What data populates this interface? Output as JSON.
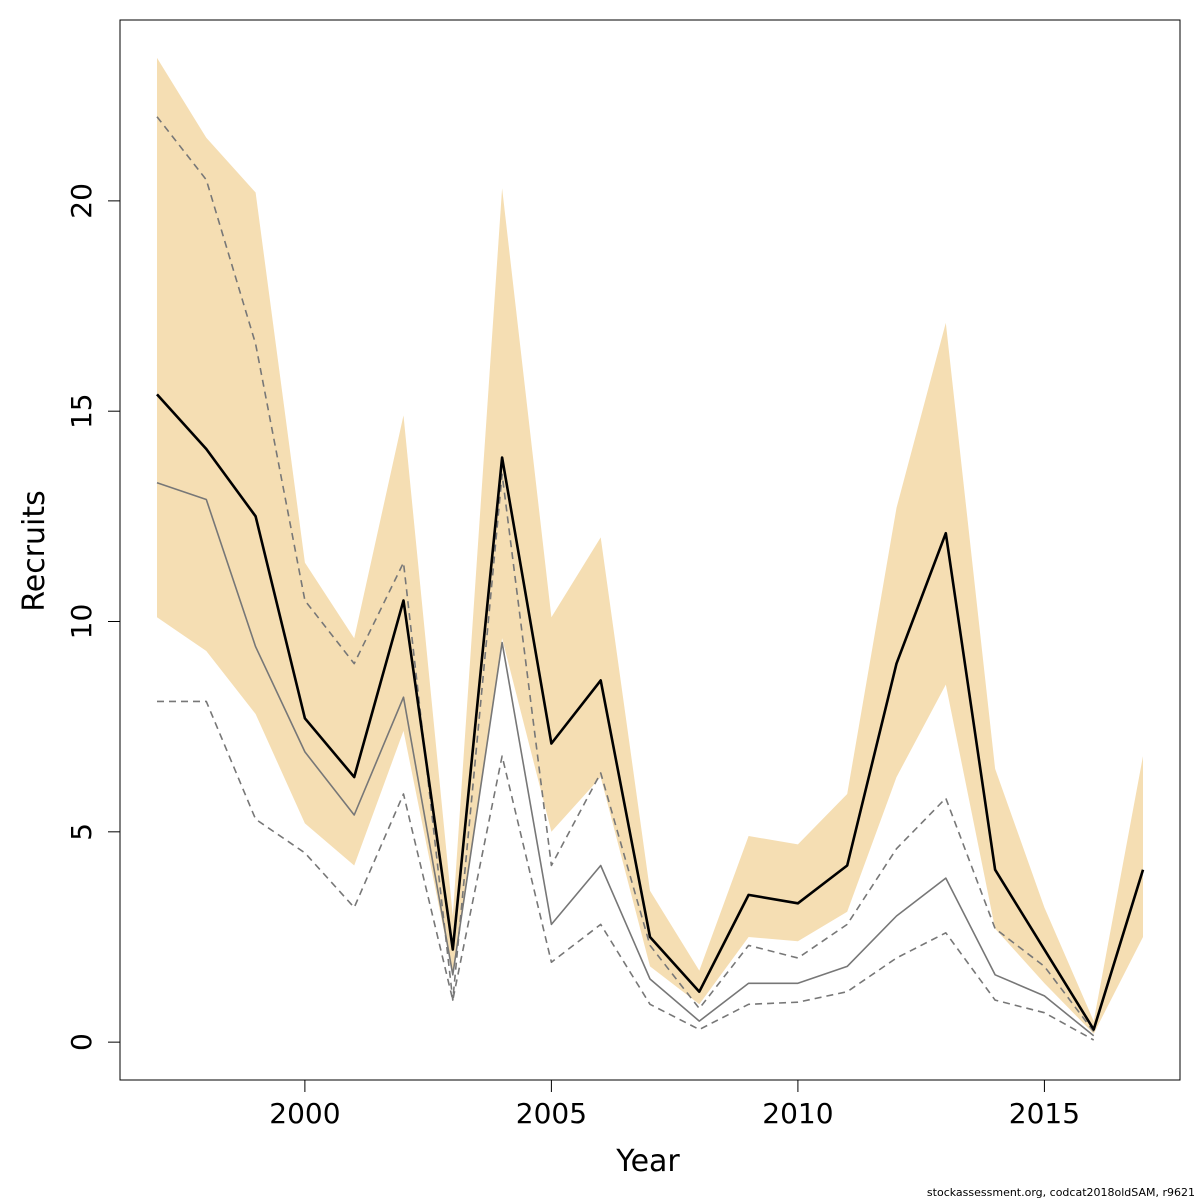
{
  "chart_data": {
    "type": "line",
    "xlabel": "Year",
    "ylabel": "Recruits",
    "xlim": [
      1996.25,
      2017.75
    ],
    "ylim": [
      -0.9,
      24.3
    ],
    "x_ticks": [
      {
        "value": 2000,
        "label": "2000"
      },
      {
        "value": 2005,
        "label": "2005"
      },
      {
        "value": 2010,
        "label": "2010"
      },
      {
        "value": 2015,
        "label": "2015"
      }
    ],
    "y_ticks": [
      {
        "value": 0,
        "label": "0"
      },
      {
        "value": 5,
        "label": "5"
      },
      {
        "value": 10,
        "label": "10"
      },
      {
        "value": 15,
        "label": "15"
      },
      {
        "value": 20,
        "label": "20"
      }
    ],
    "grid": false,
    "x": [
      1997,
      1998,
      1999,
      2000,
      2001,
      2002,
      2003,
      2004,
      2005,
      2006,
      2007,
      2008,
      2009,
      2010,
      2011,
      2012,
      2013,
      2014,
      2015,
      2016,
      2017
    ],
    "band": {
      "upper": [
        23.4,
        21.5,
        20.2,
        11.4,
        9.6,
        14.9,
        3.0,
        20.3,
        10.1,
        12.0,
        3.6,
        1.7,
        4.9,
        4.7,
        5.9,
        12.7,
        17.1,
        6.5,
        3.2,
        0.5,
        6.8
      ],
      "lower": [
        10.1,
        9.3,
        7.8,
        5.2,
        4.2,
        7.4,
        1.6,
        9.6,
        5.0,
        6.3,
        1.8,
        0.9,
        2.5,
        2.4,
        3.1,
        6.3,
        8.5,
        2.7,
        1.4,
        0.2,
        2.5
      ],
      "color": "#f5deb3"
    },
    "series": [
      {
        "values": [
          15.4,
          14.1,
          12.5,
          7.7,
          6.3,
          10.5,
          2.2,
          13.9,
          7.1,
          8.6,
          2.5,
          1.2,
          3.5,
          3.3,
          4.2,
          9.0,
          12.1,
          4.1,
          2.2,
          0.3,
          4.1
        ],
        "color": "#000000",
        "style": "solid"
      },
      {
        "values": [
          13.3,
          12.9,
          9.4,
          6.9,
          5.4,
          8.2,
          1.6,
          9.5,
          2.8,
          4.2,
          1.5,
          0.5,
          1.4,
          1.4,
          1.8,
          3.0,
          3.9,
          1.6,
          1.1,
          0.15,
          null
        ],
        "color": "#777777",
        "style": "solid"
      },
      {
        "values": [
          22.0,
          20.5,
          16.6,
          10.5,
          9.0,
          11.4,
          1.0,
          13.5,
          4.2,
          6.4,
          2.3,
          0.8,
          2.3,
          2.0,
          2.8,
          4.6,
          5.8,
          2.7,
          1.8,
          0.25,
          null
        ],
        "color": "#777777",
        "style": "dashed"
      },
      {
        "values": [
          8.1,
          8.1,
          5.3,
          4.5,
          3.2,
          5.9,
          1.0,
          6.8,
          1.9,
          2.8,
          0.9,
          0.3,
          0.9,
          0.95,
          1.2,
          2.0,
          2.6,
          1.0,
          0.7,
          0.05,
          null
        ],
        "color": "#777777",
        "style": "dashed"
      }
    ]
  },
  "footer": {
    "credit": "stockassessment.org, codcat2018oldSAM, r9621"
  }
}
